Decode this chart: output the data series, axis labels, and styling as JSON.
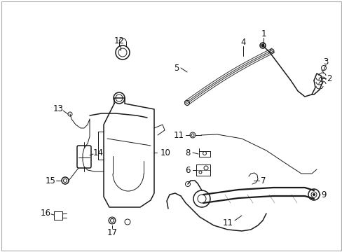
{
  "bg_color": "#ffffff",
  "border_color": "#aaaaaa",
  "line_color": "#1a1a1a",
  "label_color": "#111111",
  "fig_width": 4.89,
  "fig_height": 3.6,
  "dpi": 100
}
